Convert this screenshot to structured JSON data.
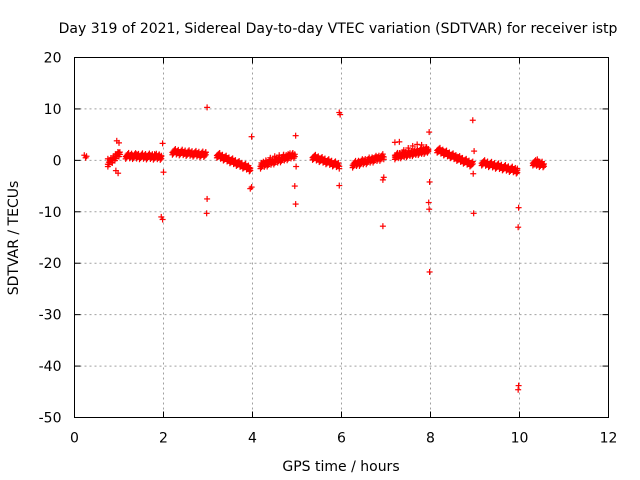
{
  "chart_data": {
    "type": "scatter",
    "title": "Day 319 of 2021, Sidereal Day-to-day VTEC variation (SDTVAR) for receiver istp",
    "xlabel": "GPS time / hours",
    "ylabel": "SDTVAR / TECUs",
    "xlim": [
      0,
      12
    ],
    "ylim": [
      -50,
      20
    ],
    "xticks": [
      0,
      2,
      4,
      6,
      8,
      10,
      12
    ],
    "yticks": [
      -50,
      -40,
      -30,
      -20,
      -10,
      0,
      10,
      20
    ],
    "xtick_labels": [
      "0",
      "2",
      "4",
      "6",
      "8",
      "10",
      "12"
    ],
    "ytick_labels": [
      "-50",
      "-40",
      "-30",
      "-20",
      "-10",
      "0",
      "10",
      "20"
    ],
    "grid": true,
    "marker": "+",
    "color": "#ff0000",
    "series": [
      {
        "name": "SDTVAR",
        "points": [
          [
            0.22,
            1.0
          ],
          [
            0.25,
            0.5
          ],
          [
            0.27,
            0.8
          ],
          [
            0.75,
            0.3
          ],
          [
            0.8,
            0.0
          ],
          [
            0.85,
            -0.5
          ],
          [
            0.88,
            0.5
          ],
          [
            0.92,
            1.2
          ],
          [
            0.95,
            0.8
          ],
          [
            1.0,
            1.5
          ],
          [
            0.95,
            3.8
          ],
          [
            1.0,
            3.4
          ],
          [
            0.93,
            -2.0
          ],
          [
            0.98,
            -2.5
          ],
          [
            1.2,
            1.2
          ],
          [
            1.3,
            1.0
          ],
          [
            1.4,
            1.2
          ],
          [
            1.5,
            0.9
          ],
          [
            1.6,
            1.1
          ],
          [
            1.7,
            1.0
          ],
          [
            1.8,
            1.2
          ],
          [
            1.9,
            1.1
          ],
          [
            1.95,
            0.9
          ],
          [
            1.98,
            3.3
          ],
          [
            2.0,
            -2.3
          ],
          [
            1.98,
            -11.5
          ],
          [
            1.95,
            -11.0
          ],
          [
            2.25,
            1.8
          ],
          [
            2.35,
            1.6
          ],
          [
            2.45,
            1.5
          ],
          [
            2.55,
            1.3
          ],
          [
            2.65,
            1.1
          ],
          [
            2.75,
            1.0
          ],
          [
            2.85,
            1.3
          ],
          [
            2.95,
            1.6
          ],
          [
            2.98,
            10.3
          ],
          [
            2.98,
            -7.5
          ],
          [
            2.97,
            -10.3
          ],
          [
            3.25,
            1.2
          ],
          [
            3.35,
            0.6
          ],
          [
            3.45,
            0.0
          ],
          [
            3.55,
            -0.3
          ],
          [
            3.65,
            -0.6
          ],
          [
            3.75,
            -0.9
          ],
          [
            3.85,
            -1.2
          ],
          [
            3.93,
            -1.4
          ],
          [
            3.98,
            4.6
          ],
          [
            3.95,
            -5.5
          ],
          [
            3.98,
            -5.2
          ],
          [
            4.2,
            -0.5
          ],
          [
            4.3,
            0.0
          ],
          [
            4.4,
            0.5
          ],
          [
            4.5,
            0.8
          ],
          [
            4.6,
            1.0
          ],
          [
            4.7,
            1.1
          ],
          [
            4.8,
            1.2
          ],
          [
            4.9,
            1.3
          ],
          [
            4.97,
            4.8
          ],
          [
            4.98,
            -1.2
          ],
          [
            4.95,
            -5.0
          ],
          [
            4.97,
            -8.5
          ],
          [
            5.4,
            0.8
          ],
          [
            5.5,
            0.4
          ],
          [
            5.6,
            0.0
          ],
          [
            5.7,
            -0.3
          ],
          [
            5.8,
            -0.6
          ],
          [
            5.9,
            -0.8
          ],
          [
            5.95,
            9.3
          ],
          [
            5.97,
            8.9
          ],
          [
            5.95,
            -4.9
          ],
          [
            6.3,
            -0.5
          ],
          [
            6.4,
            -0.3
          ],
          [
            6.5,
            0.0
          ],
          [
            6.6,
            0.2
          ],
          [
            6.7,
            0.4
          ],
          [
            6.8,
            0.6
          ],
          [
            6.9,
            0.8
          ],
          [
            6.93,
            -3.8
          ],
          [
            6.95,
            -3.3
          ],
          [
            6.93,
            -12.8
          ],
          [
            7.2,
            3.5
          ],
          [
            7.3,
            3.6
          ],
          [
            7.2,
            1.0
          ],
          [
            7.3,
            1.4
          ],
          [
            7.4,
            2.0
          ],
          [
            7.5,
            2.4
          ],
          [
            7.6,
            2.8
          ],
          [
            7.7,
            3.1
          ],
          [
            7.8,
            3.0
          ],
          [
            7.9,
            2.6
          ],
          [
            7.95,
            2.0
          ],
          [
            7.97,
            5.5
          ],
          [
            7.98,
            -4.2
          ],
          [
            7.96,
            -8.2
          ],
          [
            7.97,
            -9.5
          ],
          [
            7.98,
            -21.7
          ],
          [
            8.2,
            2.2
          ],
          [
            8.3,
            1.8
          ],
          [
            8.4,
            1.3
          ],
          [
            8.5,
            1.0
          ],
          [
            8.6,
            0.7
          ],
          [
            8.7,
            0.4
          ],
          [
            8.8,
            0.0
          ],
          [
            8.9,
            -0.5
          ],
          [
            8.95,
            7.8
          ],
          [
            8.98,
            1.8
          ],
          [
            8.96,
            -2.6
          ],
          [
            8.97,
            -10.3
          ],
          [
            9.2,
            -0.3
          ],
          [
            9.3,
            -0.7
          ],
          [
            9.4,
            -1.0
          ],
          [
            9.5,
            -1.2
          ],
          [
            9.6,
            -1.3
          ],
          [
            9.7,
            -1.4
          ],
          [
            9.8,
            -1.8
          ],
          [
            9.9,
            -2.0
          ],
          [
            9.95,
            -1.6
          ],
          [
            9.98,
            -9.2
          ],
          [
            9.97,
            -13.0
          ],
          [
            9.98,
            -43.8
          ],
          [
            9.97,
            -44.6
          ],
          [
            10.35,
            -0.8
          ],
          [
            10.4,
            0.2
          ],
          [
            10.45,
            -0.3
          ],
          [
            10.5,
            -0.6
          ]
        ]
      }
    ],
    "runs": [
      {
        "x0": 0.75,
        "x1": 1.02,
        "y0": -0.4,
        "y1": 1.6,
        "density": 12
      },
      {
        "x0": 1.15,
        "x1": 1.95,
        "y0": 1.1,
        "y1": 0.9,
        "density": 36
      },
      {
        "x0": 2.2,
        "x1": 2.95,
        "y0": 1.9,
        "y1": 1.3,
        "density": 34
      },
      {
        "x0": 3.2,
        "x1": 3.95,
        "y0": 1.3,
        "y1": -1.4,
        "density": 36
      },
      {
        "x0": 4.18,
        "x1": 4.95,
        "y0": -0.8,
        "y1": 1.3,
        "density": 36
      },
      {
        "x0": 5.35,
        "x1": 5.95,
        "y0": 0.9,
        "y1": -0.8,
        "density": 28
      },
      {
        "x0": 6.25,
        "x1": 6.95,
        "y0": -0.6,
        "y1": 0.9,
        "density": 32
      },
      {
        "x0": 7.2,
        "x1": 7.95,
        "y0": 1.0,
        "y1": 2.2,
        "density": 40
      },
      {
        "x0": 8.15,
        "x1": 8.95,
        "y0": 2.3,
        "y1": -0.6,
        "density": 38
      },
      {
        "x0": 9.15,
        "x1": 9.95,
        "y0": -0.2,
        "y1": -1.8,
        "density": 36
      },
      {
        "x0": 10.3,
        "x1": 10.55,
        "y0": -0.2,
        "y1": -0.7,
        "density": 12
      }
    ]
  }
}
